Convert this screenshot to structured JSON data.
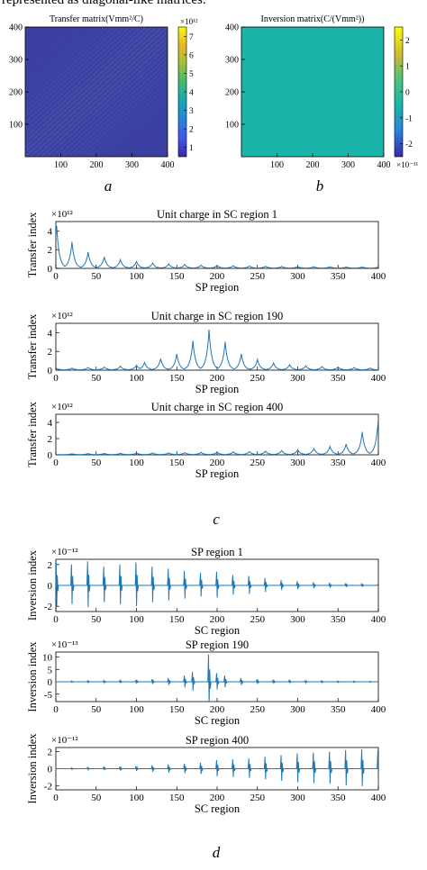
{
  "top_text": "represented as diagonal-like matrices.",
  "colors": {
    "line": "#1f77b4",
    "hm_bg": "#3b3fa0",
    "inv_bg": "#1ab5a8"
  },
  "panels": {
    "a": {
      "label": "a"
    },
    "b": {
      "label": "b"
    },
    "c": {
      "label": "c"
    },
    "d": {
      "label": "d"
    }
  },
  "chart_data": [
    {
      "type": "heatmap",
      "id": "a",
      "title": "Transfer matrix(Vmm²/C)",
      "x": {
        "min": 0,
        "max": 400,
        "ticks": [
          100,
          200,
          300,
          400
        ]
      },
      "y": {
        "min": 0,
        "max": 400,
        "ticks": [
          100,
          200,
          300,
          400
        ]
      },
      "colorbar": {
        "ticks": [
          1,
          2,
          3,
          4,
          5,
          6,
          7
        ],
        "multiplier": "×10¹²",
        "range": [
          0.5,
          7.5
        ]
      },
      "description_values": {
        "diagonal_band": "stronger near diagonal, weak periodic stripes"
      }
    },
    {
      "type": "heatmap",
      "id": "b",
      "title": "Inversion matrix(C/(Vmm²))",
      "x": {
        "min": 0,
        "max": 400,
        "ticks": [
          100,
          200,
          300,
          400
        ]
      },
      "y": {
        "min": 0,
        "max": 400,
        "ticks": [
          100,
          200,
          300,
          400
        ]
      },
      "colorbar": {
        "ticks": [
          -2,
          -1,
          0,
          1,
          2
        ],
        "multiplier": "×10⁻¹¹",
        "range": [
          -2.5,
          2.5
        ]
      },
      "uniform_value": 0
    },
    {
      "type": "line",
      "id": "c1",
      "title": "Unit charge in SC region 1",
      "xlabel": "SP region",
      "ylabel": "Transfer index",
      "xlim": [
        0,
        400
      ],
      "ylim": [
        0,
        5
      ],
      "xticks": [
        0,
        50,
        100,
        150,
        200,
        250,
        300,
        350,
        400
      ],
      "yticks": [
        0,
        2,
        4
      ],
      "multiplier": "×10¹²",
      "peaks": [
        [
          1,
          4.5
        ],
        [
          20,
          2.8
        ],
        [
          40,
          1.7
        ],
        [
          60,
          1.2
        ],
        [
          80,
          0.9
        ],
        [
          100,
          0.7
        ],
        [
          120,
          0.55
        ],
        [
          140,
          0.45
        ],
        [
          160,
          0.38
        ],
        [
          180,
          0.32
        ],
        [
          200,
          0.28
        ],
        [
          220,
          0.25
        ],
        [
          240,
          0.22
        ],
        [
          260,
          0.2
        ],
        [
          280,
          0.18
        ],
        [
          300,
          0.16
        ],
        [
          320,
          0.15
        ],
        [
          340,
          0.14
        ],
        [
          360,
          0.12
        ],
        [
          380,
          0.12
        ],
        [
          400,
          0.1
        ]
      ]
    },
    {
      "type": "line",
      "id": "c2",
      "title": "Unit charge in SC region 190",
      "xlabel": "SP region",
      "ylabel": "Transfer index",
      "xlim": [
        0,
        400
      ],
      "ylim": [
        0,
        5
      ],
      "xticks": [
        0,
        50,
        100,
        150,
        200,
        250,
        300,
        350,
        400
      ],
      "yticks": [
        0,
        2,
        4
      ],
      "multiplier": "×10¹²",
      "peaks": [
        [
          1,
          0.15
        ],
        [
          20,
          0.2
        ],
        [
          40,
          0.25
        ],
        [
          60,
          0.3
        ],
        [
          80,
          0.4
        ],
        [
          100,
          0.5
        ],
        [
          110,
          0.8
        ],
        [
          130,
          1.2
        ],
        [
          150,
          1.7
        ],
        [
          170,
          3.1
        ],
        [
          190,
          4.3
        ],
        [
          210,
          3.0
        ],
        [
          230,
          1.7
        ],
        [
          250,
          1.1
        ],
        [
          270,
          0.75
        ],
        [
          290,
          0.55
        ],
        [
          310,
          0.45
        ],
        [
          330,
          0.35
        ],
        [
          350,
          0.3
        ],
        [
          370,
          0.25
        ],
        [
          390,
          0.2
        ]
      ]
    },
    {
      "type": "line",
      "id": "c3",
      "title": "Unit charge in SC region 400",
      "xlabel": "SP region",
      "ylabel": "Transfer index",
      "xlim": [
        0,
        400
      ],
      "ylim": [
        0,
        5
      ],
      "xticks": [
        0,
        50,
        100,
        150,
        200,
        250,
        300,
        350,
        400
      ],
      "yticks": [
        0,
        2,
        4
      ],
      "multiplier": "×10¹²",
      "peaks": [
        [
          20,
          0.1
        ],
        [
          40,
          0.12
        ],
        [
          60,
          0.14
        ],
        [
          80,
          0.16
        ],
        [
          100,
          0.18
        ],
        [
          120,
          0.2
        ],
        [
          140,
          0.22
        ],
        [
          160,
          0.25
        ],
        [
          180,
          0.28
        ],
        [
          200,
          0.3
        ],
        [
          220,
          0.33
        ],
        [
          240,
          0.37
        ],
        [
          260,
          0.42
        ],
        [
          280,
          0.5
        ],
        [
          300,
          0.6
        ],
        [
          320,
          0.75
        ],
        [
          340,
          1.0
        ],
        [
          360,
          1.3
        ],
        [
          380,
          2.8
        ],
        [
          400,
          4.5
        ]
      ]
    },
    {
      "type": "line",
      "id": "d1",
      "title": "SP region 1",
      "xlabel": "SC region",
      "ylabel": "Inversion index",
      "xlim": [
        0,
        400
      ],
      "ylim": [
        -2.5,
        2.5
      ],
      "xticks": [
        0,
        50,
        100,
        150,
        200,
        250,
        300,
        350,
        400
      ],
      "yticks": [
        -2,
        0,
        2
      ],
      "multiplier": "×10⁻¹²",
      "spikes": [
        [
          1,
          2.2
        ],
        [
          20,
          2.0
        ],
        [
          40,
          2.3
        ],
        [
          60,
          1.8
        ],
        [
          80,
          2.0
        ],
        [
          100,
          2.2
        ],
        [
          120,
          1.8
        ],
        [
          140,
          1.6
        ],
        [
          160,
          1.4
        ],
        [
          180,
          1.2
        ],
        [
          200,
          1.3
        ],
        [
          220,
          1.0
        ],
        [
          240,
          0.9
        ],
        [
          260,
          0.7
        ],
        [
          280,
          0.5
        ],
        [
          300,
          0.4
        ],
        [
          320,
          0.3
        ],
        [
          340,
          0.25
        ],
        [
          360,
          0.2
        ],
        [
          380,
          0.15
        ],
        [
          400,
          0.1
        ]
      ]
    },
    {
      "type": "line",
      "id": "d2",
      "title": "SP region 190",
      "xlabel": "SC region",
      "ylabel": "Inversion index",
      "xlim": [
        0,
        400
      ],
      "ylim": [
        -8,
        12
      ],
      "xticks": [
        0,
        50,
        100,
        150,
        200,
        250,
        300,
        350,
        400
      ],
      "yticks": [
        -5,
        0,
        5,
        10
      ],
      "multiplier": "×10⁻¹³",
      "spikes": [
        [
          20,
          0.3
        ],
        [
          40,
          0.4
        ],
        [
          60,
          0.5
        ],
        [
          80,
          0.6
        ],
        [
          100,
          0.8
        ],
        [
          120,
          1.0
        ],
        [
          140,
          1.5
        ],
        [
          160,
          2.5
        ],
        [
          170,
          4.0
        ],
        [
          190,
          11.0
        ],
        [
          200,
          3.5
        ],
        [
          210,
          2.5
        ],
        [
          230,
          1.5
        ],
        [
          250,
          1.0
        ],
        [
          270,
          0.8
        ],
        [
          290,
          0.6
        ],
        [
          310,
          0.5
        ],
        [
          330,
          0.4
        ],
        [
          350,
          0.3
        ],
        [
          370,
          0.3
        ],
        [
          390,
          0.2
        ]
      ]
    },
    {
      "type": "line",
      "id": "d3",
      "title": "SP region 400",
      "xlabel": "SC region",
      "ylabel": "Inversion index",
      "xlim": [
        0,
        400
      ],
      "ylim": [
        -2.5,
        2.5
      ],
      "xticks": [
        0,
        50,
        100,
        150,
        200,
        250,
        300,
        350,
        400
      ],
      "yticks": [
        -2,
        0,
        2
      ],
      "multiplier": "×10⁻¹²",
      "spikes": [
        [
          20,
          0.1
        ],
        [
          40,
          0.15
        ],
        [
          60,
          0.2
        ],
        [
          80,
          0.25
        ],
        [
          100,
          0.3
        ],
        [
          120,
          0.4
        ],
        [
          140,
          0.5
        ],
        [
          160,
          0.6
        ],
        [
          180,
          0.7
        ],
        [
          200,
          1.0
        ],
        [
          220,
          1.1
        ],
        [
          240,
          1.2
        ],
        [
          260,
          1.4
        ],
        [
          280,
          1.6
        ],
        [
          300,
          1.8
        ],
        [
          320,
          1.9
        ],
        [
          340,
          2.0
        ],
        [
          360,
          2.2
        ],
        [
          380,
          2.3
        ],
        [
          400,
          2.2
        ]
      ]
    }
  ]
}
